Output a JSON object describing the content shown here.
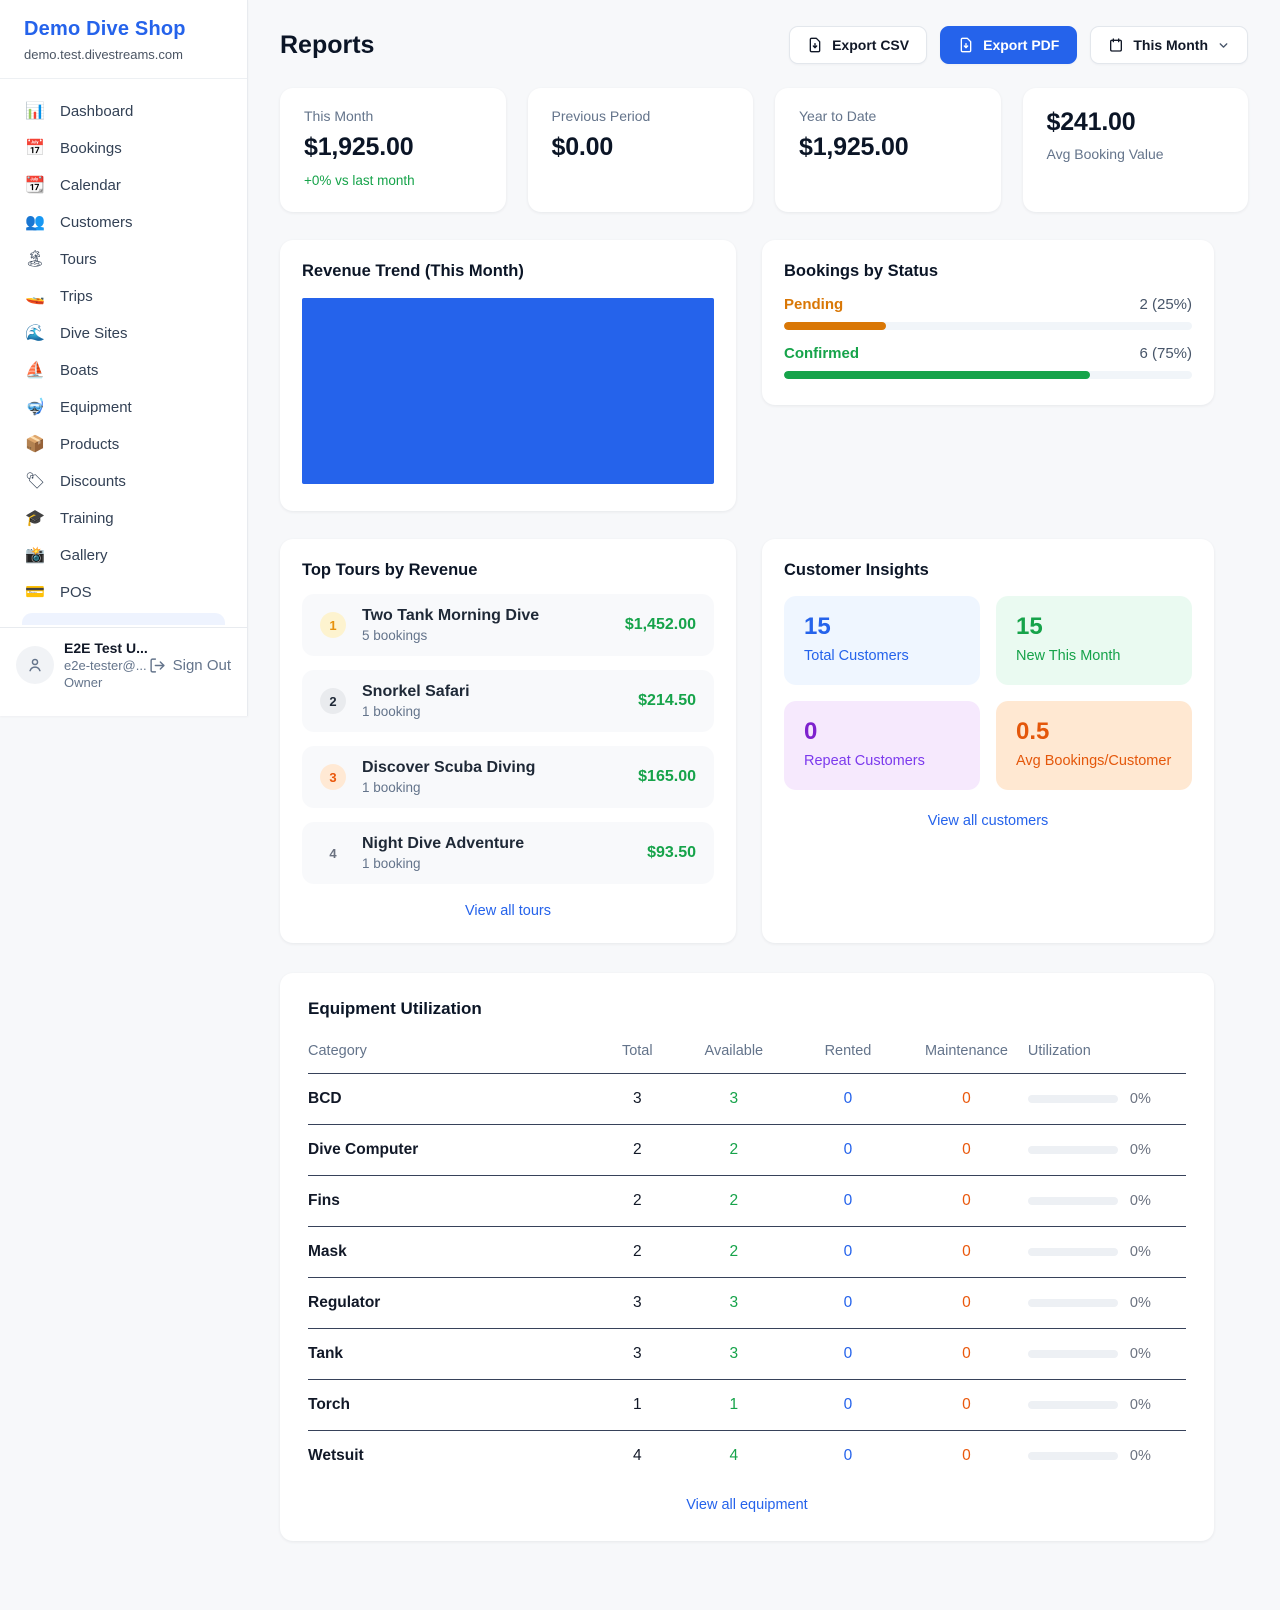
{
  "sidebar": {
    "brand": {
      "name": "Demo Dive Shop",
      "domain": "demo.test.divestreams.com"
    },
    "items": [
      {
        "icon": "📊",
        "label": "Dashboard"
      },
      {
        "icon": "📅",
        "label": "Bookings"
      },
      {
        "icon": "📆",
        "label": "Calendar"
      },
      {
        "icon": "👥",
        "label": "Customers"
      },
      {
        "icon": "🏝",
        "label": "Tours"
      },
      {
        "icon": "🚤",
        "label": "Trips"
      },
      {
        "icon": "🌊",
        "label": "Dive Sites"
      },
      {
        "icon": "⛵",
        "label": "Boats"
      },
      {
        "icon": "🤿",
        "label": "Equipment"
      },
      {
        "icon": "📦",
        "label": "Products"
      },
      {
        "icon": "🏷",
        "label": "Discounts"
      },
      {
        "icon": "🎓",
        "label": "Training"
      },
      {
        "icon": "📸",
        "label": "Gallery"
      },
      {
        "icon": "💳",
        "label": "POS"
      }
    ],
    "user": {
      "name": "E2E Test U...",
      "email": "e2e-tester@...",
      "role": "Owner",
      "sign_out": "Sign Out"
    }
  },
  "header": {
    "title": "Reports",
    "export_csv": "Export CSV",
    "export_pdf": "Export PDF",
    "period": "This Month"
  },
  "stats": [
    {
      "label": "This Month",
      "value": "$1,925.00",
      "delta": "+0% vs last month"
    },
    {
      "label": "Previous Period",
      "value": "$0.00"
    },
    {
      "label": "Year to Date",
      "value": "$1,925.00"
    },
    {
      "label": "Avg Booking Value",
      "value": "$241.00"
    }
  ],
  "revenue_trend": {
    "title": "Revenue Trend (This Month)",
    "bar_color": "#2563eb"
  },
  "bookings_by_status": {
    "title": "Bookings by Status",
    "rows": [
      {
        "label": "Pending",
        "value": "2 (25%)",
        "pct": 25,
        "color": "#d97706"
      },
      {
        "label": "Confirmed",
        "value": "6 (75%)",
        "pct": 75,
        "color": "#16a34a"
      }
    ]
  },
  "top_tours": {
    "title": "Top Tours by Revenue",
    "rows": [
      {
        "rank": "1",
        "name": "Two Tank Morning Dive",
        "bookings": "5 bookings",
        "amount": "$1,452.00"
      },
      {
        "rank": "2",
        "name": "Snorkel Safari",
        "bookings": "1 booking",
        "amount": "$214.50"
      },
      {
        "rank": "3",
        "name": "Discover Scuba Diving",
        "bookings": "1 booking",
        "amount": "$165.00"
      },
      {
        "rank": "4",
        "name": "Night Dive Adventure",
        "bookings": "1 booking",
        "amount": "$93.50"
      }
    ],
    "link": "View all tours"
  },
  "customer_insights": {
    "title": "Customer Insights",
    "tiles": [
      {
        "value": "15",
        "label": "Total Customers"
      },
      {
        "value": "15",
        "label": "New This Month"
      },
      {
        "value": "0",
        "label": "Repeat Customers"
      },
      {
        "value": "0.5",
        "label": "Avg Bookings/Customer"
      }
    ],
    "link": "View all customers"
  },
  "equipment": {
    "title": "Equipment Utilization",
    "columns": [
      "Category",
      "Total",
      "Available",
      "Rented",
      "Maintenance",
      "Utilization"
    ],
    "rows": [
      {
        "category": "BCD",
        "total": "3",
        "available": "3",
        "rented": "0",
        "maintenance": "0",
        "utilization": "0%"
      },
      {
        "category": "Dive Computer",
        "total": "2",
        "available": "2",
        "rented": "0",
        "maintenance": "0",
        "utilization": "0%"
      },
      {
        "category": "Fins",
        "total": "2",
        "available": "2",
        "rented": "0",
        "maintenance": "0",
        "utilization": "0%"
      },
      {
        "category": "Mask",
        "total": "2",
        "available": "2",
        "rented": "0",
        "maintenance": "0",
        "utilization": "0%"
      },
      {
        "category": "Regulator",
        "total": "3",
        "available": "3",
        "rented": "0",
        "maintenance": "0",
        "utilization": "0%"
      },
      {
        "category": "Tank",
        "total": "3",
        "available": "3",
        "rented": "0",
        "maintenance": "0",
        "utilization": "0%"
      },
      {
        "category": "Torch",
        "total": "1",
        "available": "1",
        "rented": "0",
        "maintenance": "0",
        "utilization": "0%"
      },
      {
        "category": "Wetsuit",
        "total": "4",
        "available": "4",
        "rented": "0",
        "maintenance": "0",
        "utilization": "0%"
      }
    ],
    "link": "View all equipment"
  },
  "colors": {
    "accent": "#2563eb",
    "green": "#16a34a",
    "pending_orange": "#d97706",
    "deep_orange": "#ea580c",
    "purple": "#7e22ce"
  }
}
